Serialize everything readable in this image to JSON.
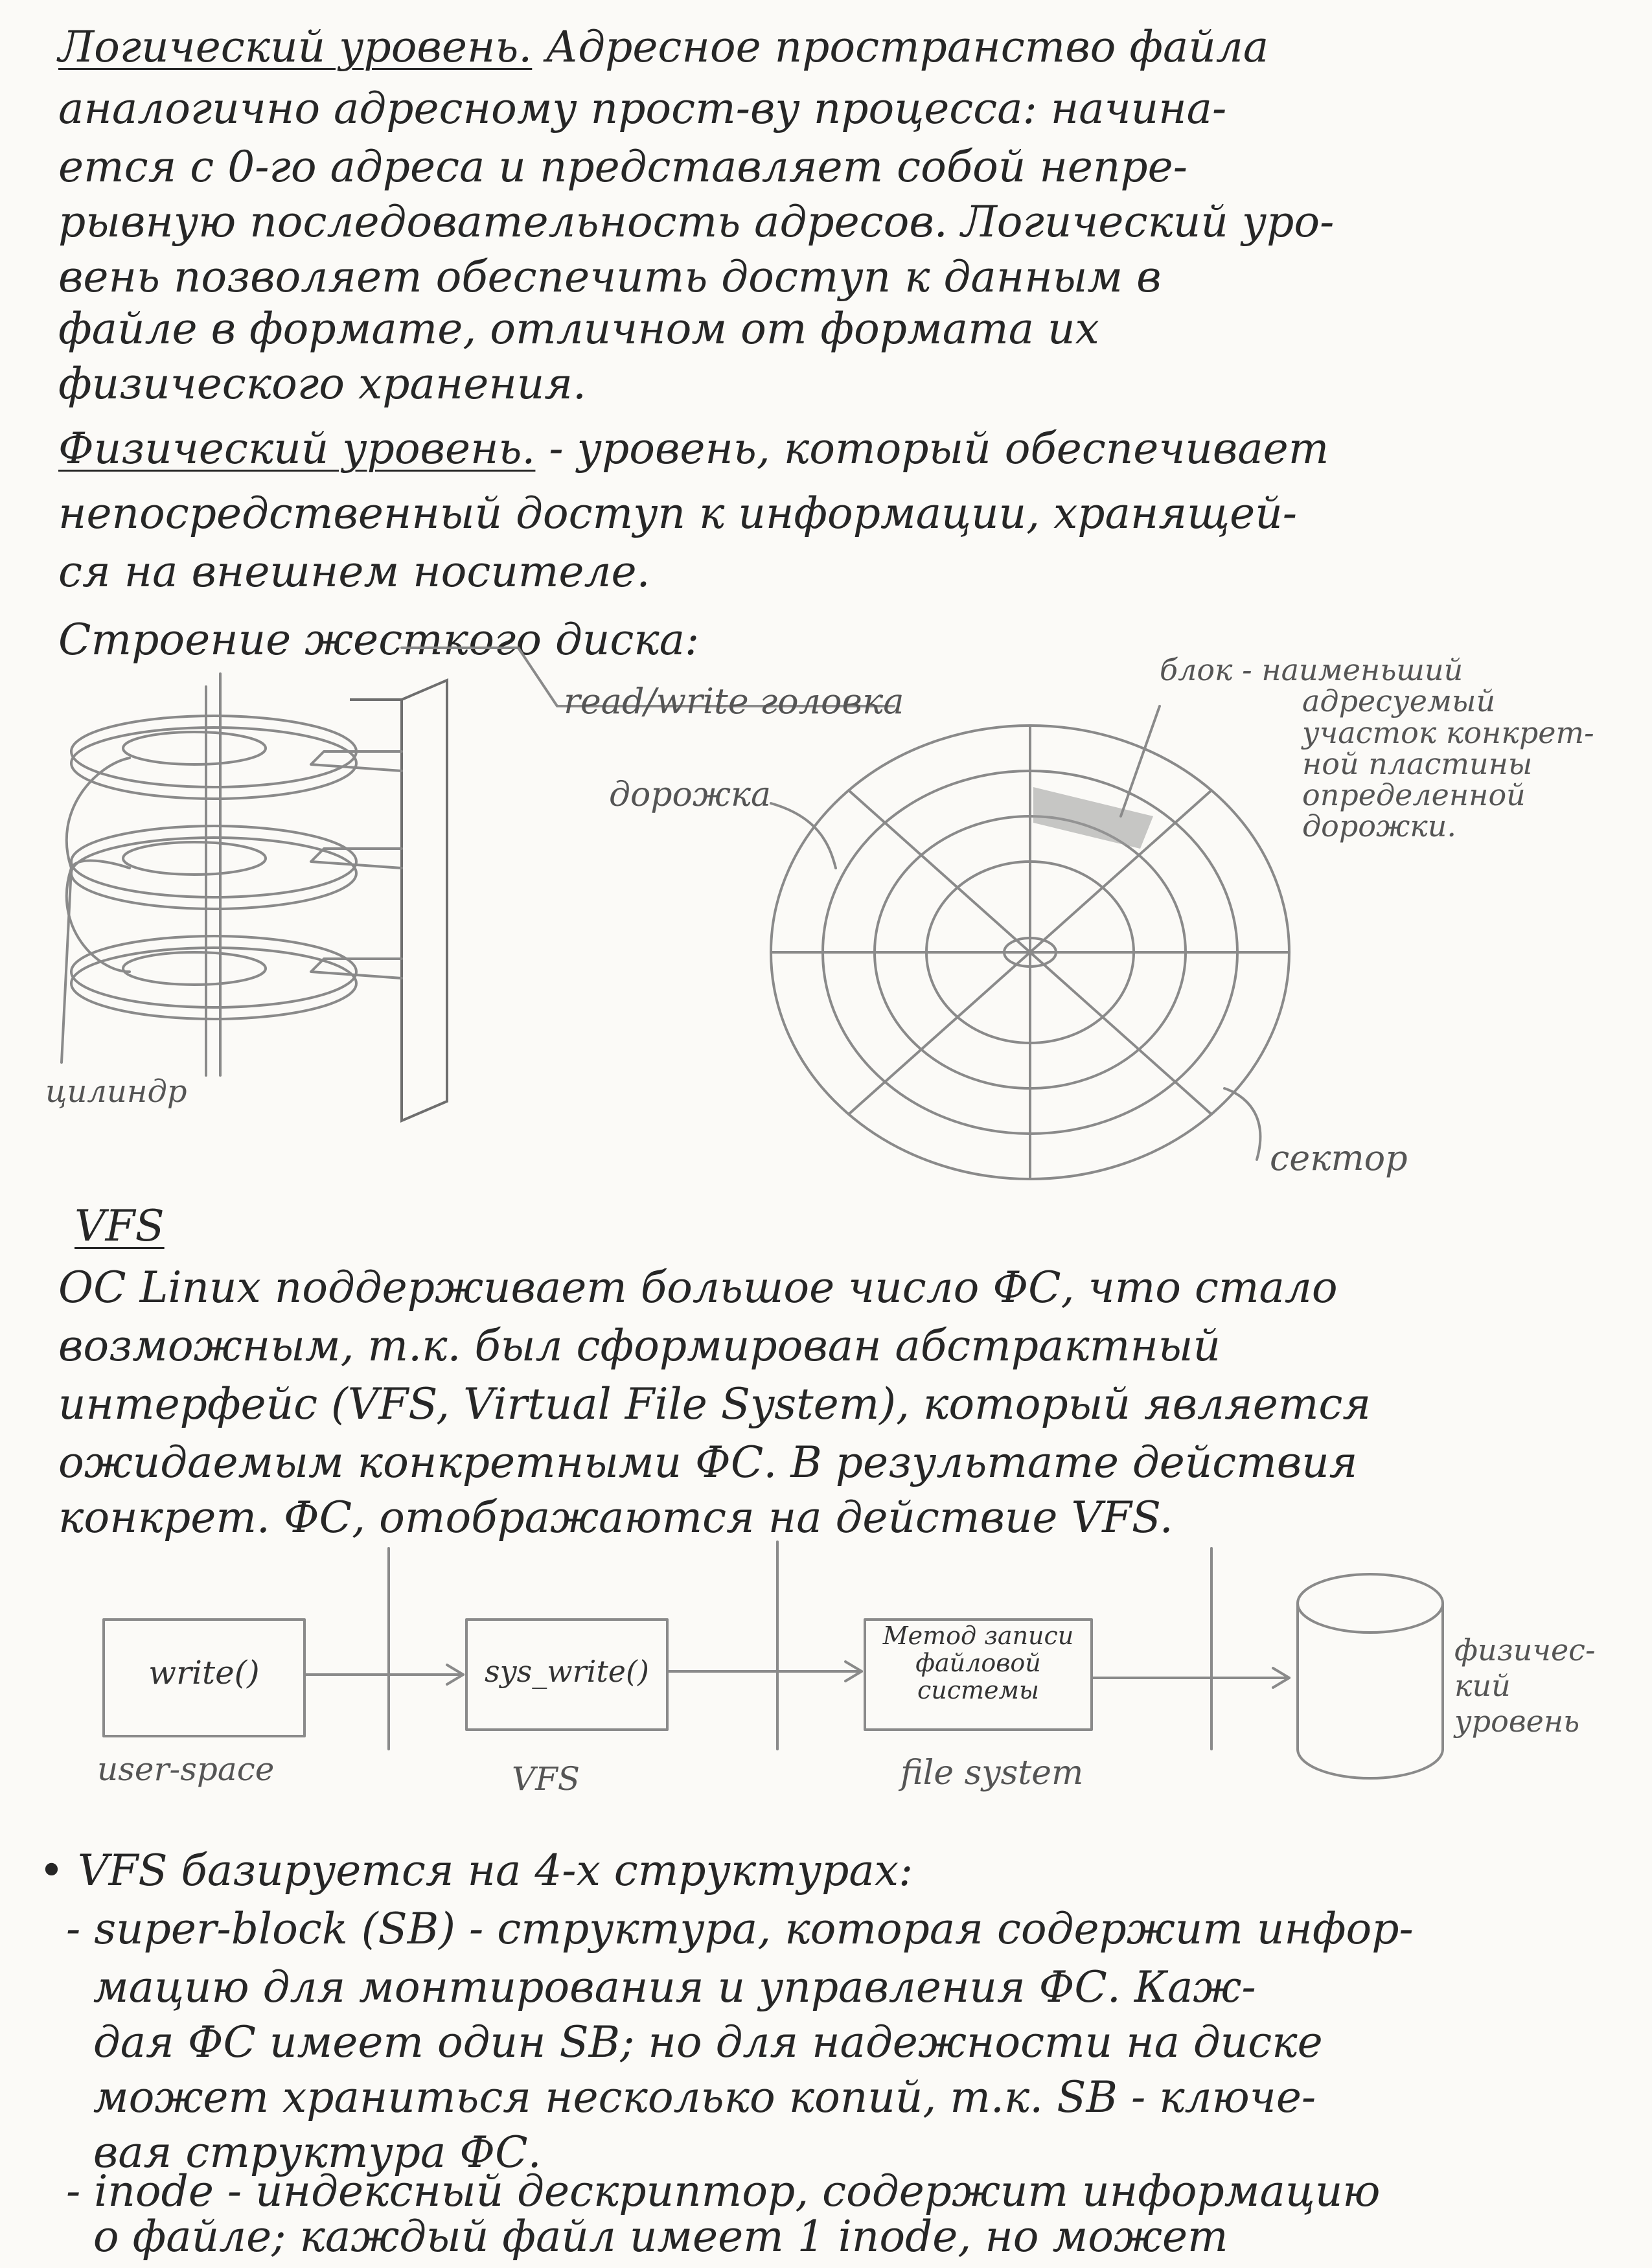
{
  "text_lines": [
    {
      "title": "Логический уровень.",
      "rest": " Адресное пространство файла"
    },
    {
      "text": "аналогично адресному прост-ву процесса: начина-"
    },
    {
      "text": "ется с 0-го адреса и представляет собой непре-"
    },
    {
      "text": "рывную последовательность адресов. Логический уро-"
    },
    {
      "text": "вень позволяет обеспечить доступ к данным в"
    },
    {
      "text": "файле в формате, отличном от формата их"
    },
    {
      "text": "физического хранения."
    },
    {
      "title": "Физический уровень.",
      "rest": " - уровень, который обеспечивает"
    },
    {
      "text": "непосредственный доступ к информации, хранящей-"
    },
    {
      "text": "ся на внешнем носителе."
    },
    {
      "text": "Строение жесткого диска:"
    }
  ],
  "disk_labels": {
    "head": "read/write головка",
    "cylinder": "цилиндр",
    "track": "дорожка",
    "sector": "сектор",
    "block": [
      "блок - наименьший",
      "адресуемый",
      "участок конкрет-",
      "ной пластины",
      "определенной",
      "дорожки."
    ]
  },
  "vfs_heading": "VFS",
  "vfs_lines": [
    "ОС Linux поддерживает большое число ФС, что стало",
    "возможным, т.к. был сформирован абстрактный",
    "интерфейс (VFS, Virtual File System), который является",
    "ожидаемым конкретными ФС. В результате действия",
    "конкрет. ФС, отображаются на действие VFS."
  ],
  "flow": {
    "boxes": [
      "write()",
      "sys_write()",
      "Метод записи файловой системы"
    ],
    "layers": [
      "user-space",
      "VFS",
      "file system"
    ],
    "end_label": [
      "физичес-",
      "кий",
      "уровень"
    ]
  },
  "bottom_lines": [
    "• VFS базируется на 4-х структурах:",
    "  - super-block (SB) - структура, которая содержит инфор-",
    "    мацию для монтирования и управления ФС. Каж-",
    "    дая ФС имеет один SB; но для надежности на диске",
    "    может храниться несколько копий, т.к. SB - ключе-",
    "    вая структура ФС.",
    "  - inode - индексный дескриптор, содержит информацию",
    "    о файле; каждый файл имеет 1 inode, но может"
  ]
}
